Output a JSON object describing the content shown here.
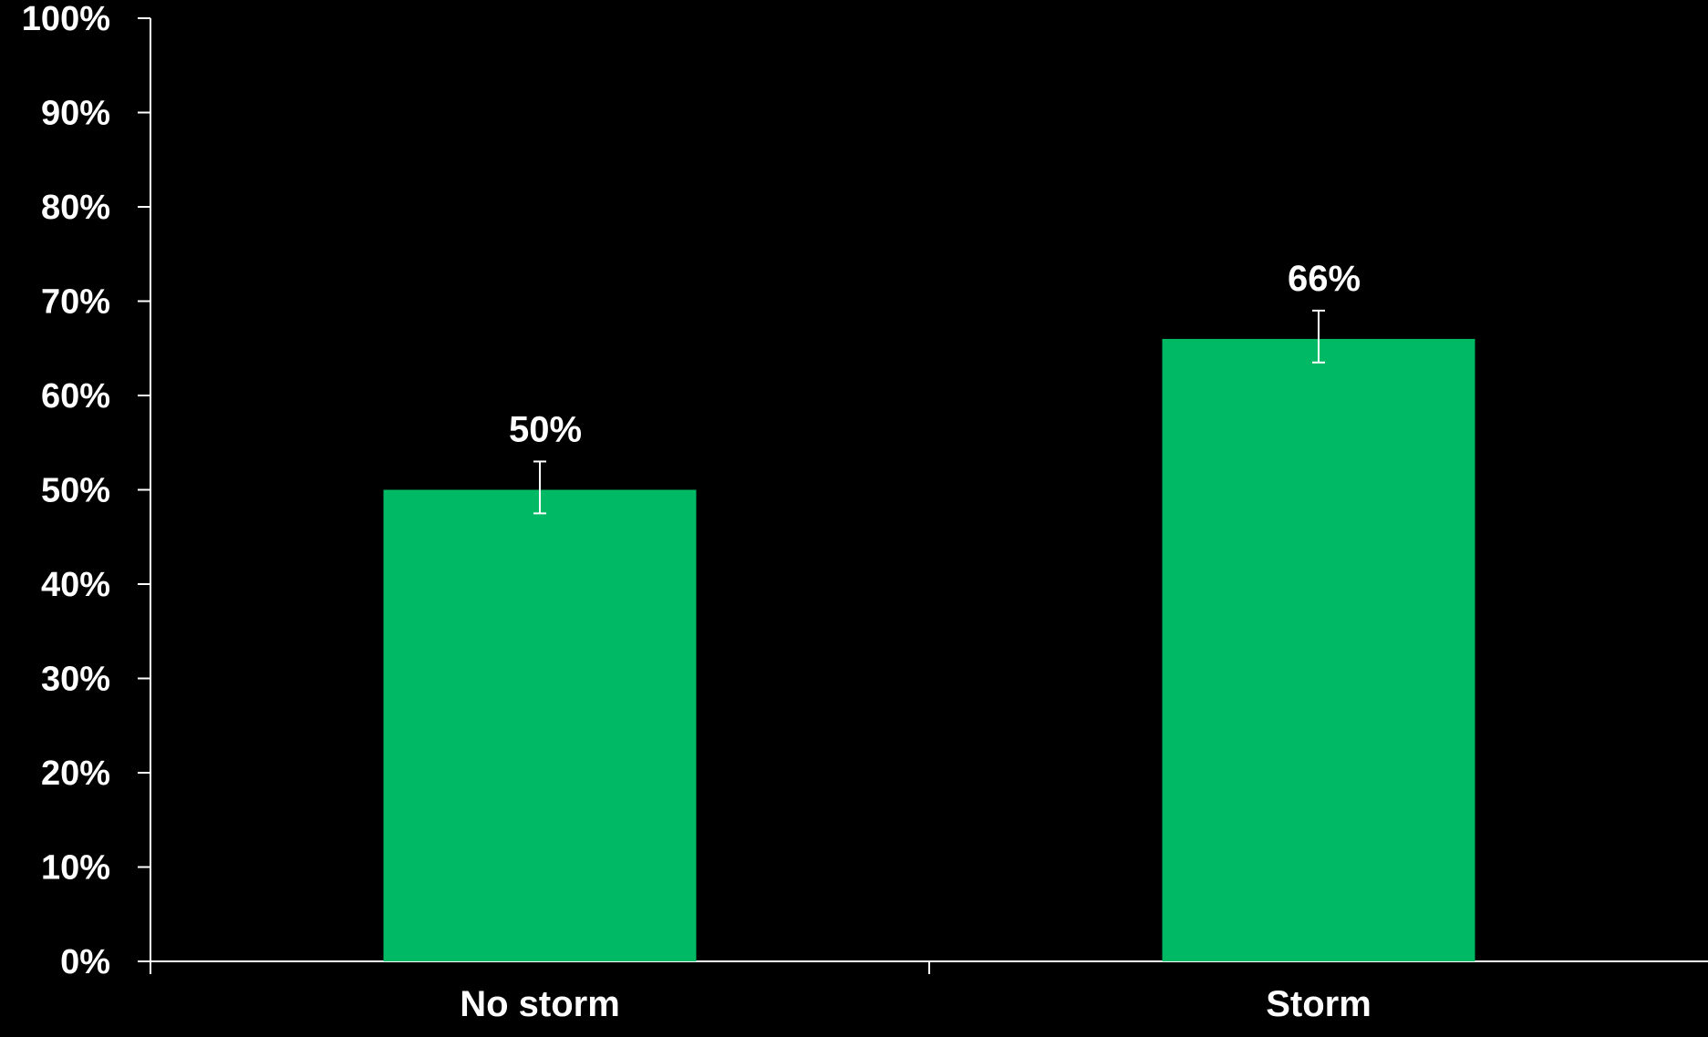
{
  "chart_data": {
    "type": "bar",
    "categories": [
      "No storm",
      "Storm"
    ],
    "values": [
      50,
      66
    ],
    "data_labels": [
      "50%",
      "66%"
    ],
    "error_bars": [
      {
        "low": 47.5,
        "high": 53
      },
      {
        "low": 63.5,
        "high": 69
      }
    ],
    "ylim": [
      0,
      100
    ],
    "yticks": [
      0,
      10,
      20,
      30,
      40,
      50,
      60,
      70,
      80,
      90,
      100
    ],
    "ytick_labels": [
      "0%",
      "10%",
      "20%",
      "30%",
      "40%",
      "50%",
      "60%",
      "70%",
      "80%",
      "90%",
      "100%"
    ],
    "title": "",
    "xlabel": "",
    "ylabel": "",
    "grid": false,
    "colors": {
      "background": "#000000",
      "bar": "#00b964",
      "axis": "#ffffff",
      "text": "#ffffff",
      "error_bar": "#ffffff"
    }
  }
}
